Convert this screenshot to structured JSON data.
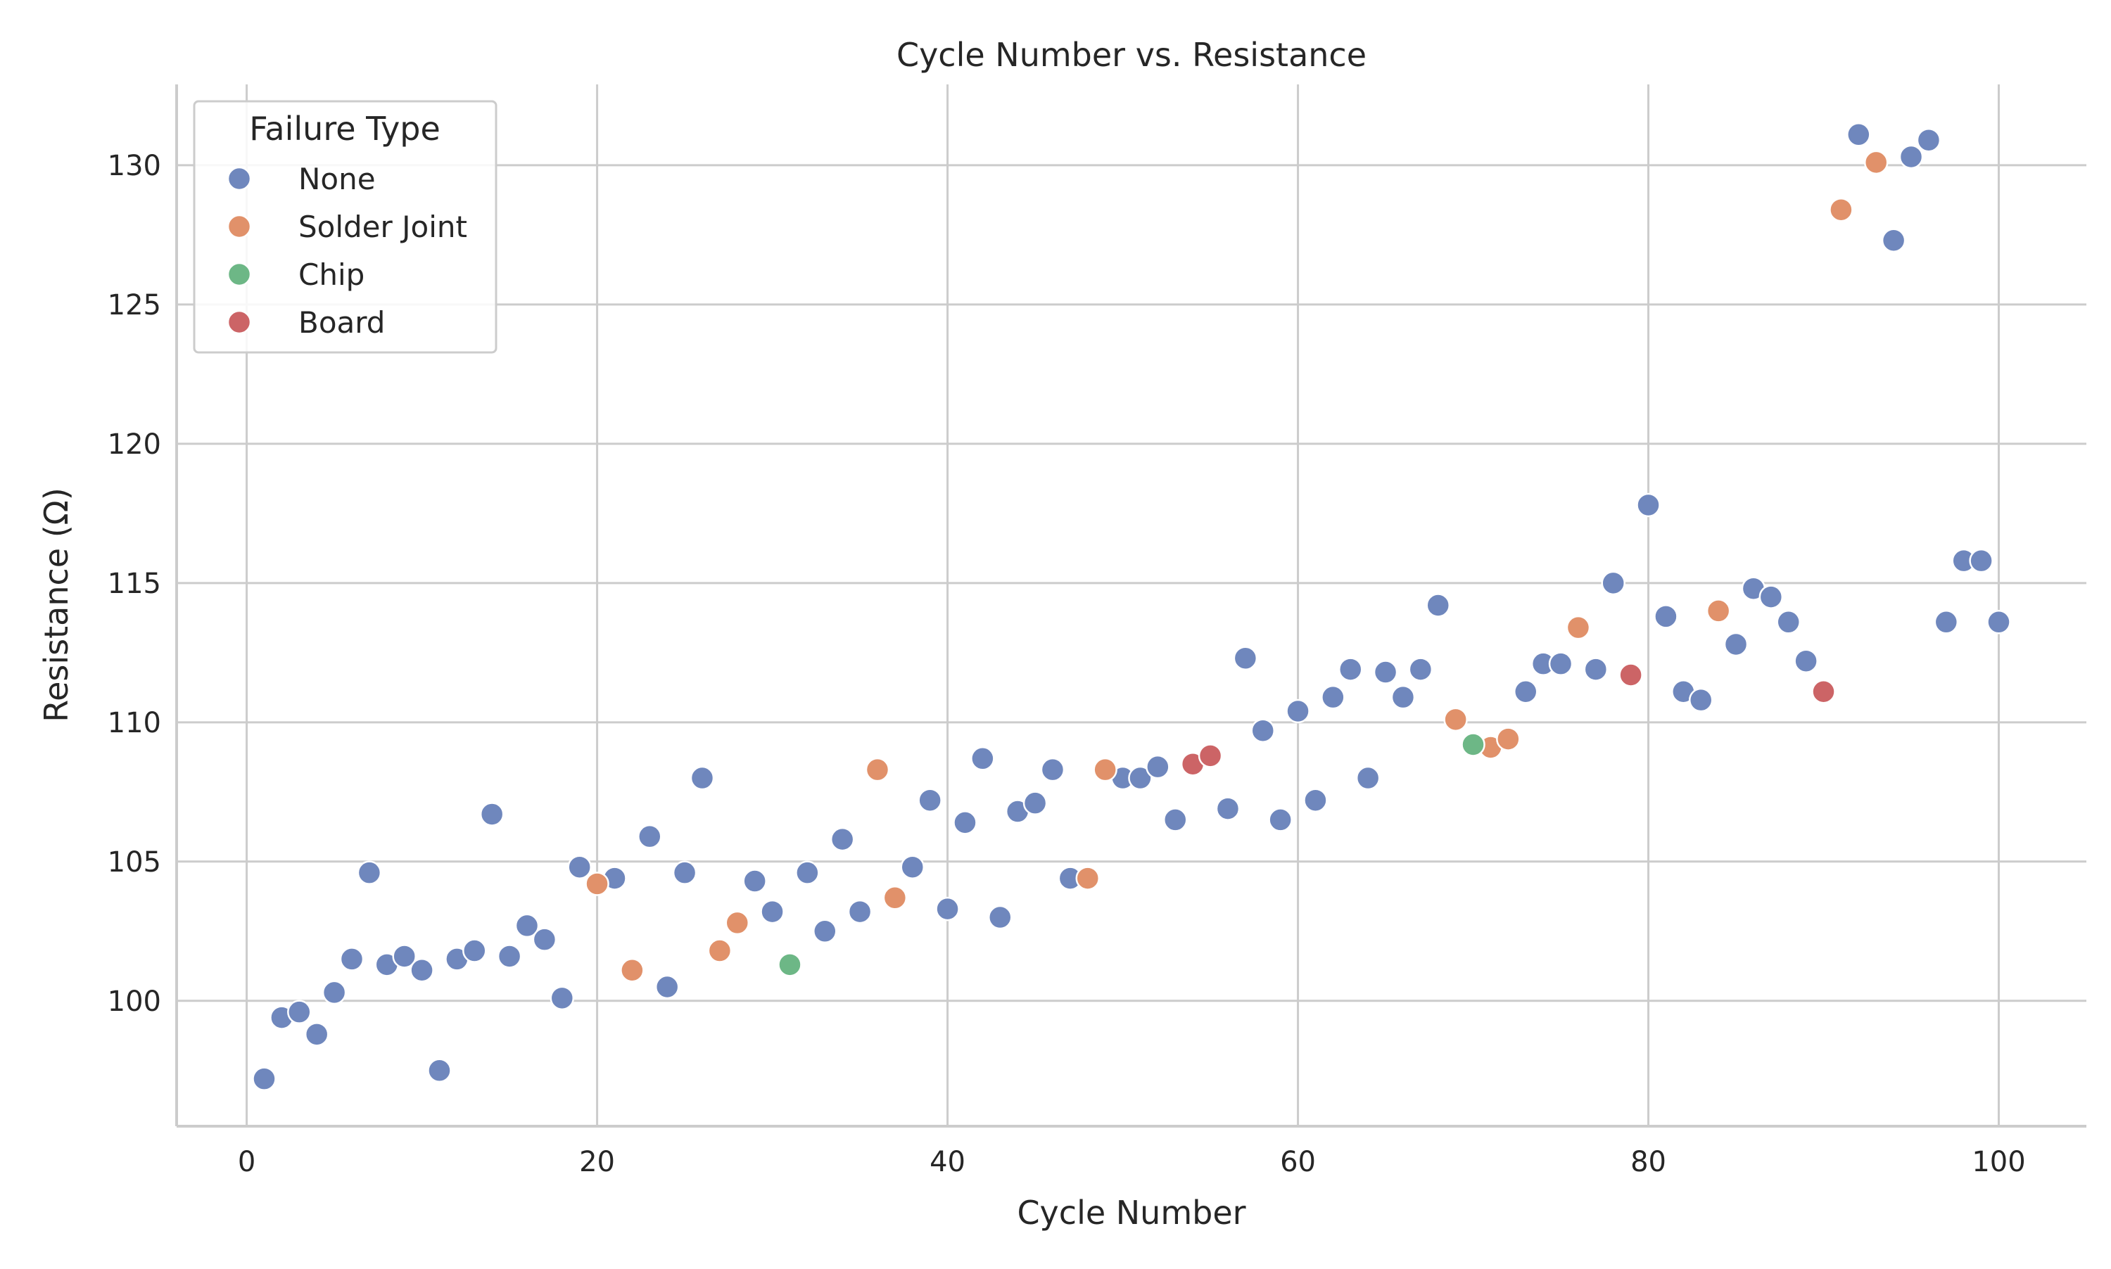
{
  "chart_data": {
    "type": "scatter",
    "title": "Cycle Number vs. Resistance",
    "xlabel": "Cycle Number",
    "ylabel": "Resistance (Ω)",
    "xlim": [
      -4,
      105
    ],
    "ylim": [
      95.5,
      132.9
    ],
    "xticks": [
      0,
      20,
      40,
      60,
      80,
      100
    ],
    "yticks": [
      100,
      105,
      110,
      115,
      120,
      125,
      130
    ],
    "xtick_labels": [
      "0",
      "20",
      "40",
      "60",
      "80",
      "100"
    ],
    "ytick_labels": [
      "100",
      "105",
      "110",
      "115",
      "120",
      "125",
      "130"
    ],
    "grid": true,
    "legend": {
      "title": "Failure Type",
      "placement": "top-left",
      "entries": [
        "None",
        "Solder Joint",
        "Chip",
        "Board"
      ]
    },
    "colors": {
      "None": "#6f87bd",
      "Solder Joint": "#e1916a",
      "Chip": "#6db786",
      "Board": "#cc6466"
    },
    "series": [
      {
        "name": "None",
        "points": [
          [
            1,
            97.2
          ],
          [
            2,
            99.4
          ],
          [
            3,
            99.6
          ],
          [
            4,
            98.8
          ],
          [
            5,
            100.3
          ],
          [
            6,
            101.5
          ],
          [
            7,
            104.6
          ],
          [
            8,
            101.3
          ],
          [
            9,
            101.6
          ],
          [
            10,
            101.1
          ],
          [
            11,
            97.5
          ],
          [
            12,
            101.5
          ],
          [
            13,
            101.8
          ],
          [
            14,
            106.7
          ],
          [
            15,
            101.6
          ],
          [
            16,
            102.7
          ],
          [
            17,
            102.2
          ],
          [
            18,
            100.1
          ],
          [
            19,
            104.8
          ],
          [
            21,
            104.4
          ],
          [
            23,
            105.9
          ],
          [
            24,
            100.5
          ],
          [
            25,
            104.6
          ],
          [
            26,
            108.0
          ],
          [
            29,
            104.3
          ],
          [
            30,
            103.2
          ],
          [
            32,
            104.6
          ],
          [
            33,
            102.5
          ],
          [
            34,
            105.8
          ],
          [
            35,
            103.2
          ],
          [
            38,
            104.8
          ],
          [
            39,
            107.2
          ],
          [
            40,
            103.3
          ],
          [
            41,
            106.4
          ],
          [
            42,
            108.7
          ],
          [
            43,
            103.0
          ],
          [
            44,
            106.8
          ],
          [
            45,
            107.1
          ],
          [
            46,
            108.3
          ],
          [
            47,
            104.4
          ],
          [
            50,
            108.0
          ],
          [
            51,
            108.0
          ],
          [
            52,
            108.4
          ],
          [
            53,
            106.5
          ],
          [
            56,
            106.9
          ],
          [
            57,
            112.3
          ],
          [
            58,
            109.7
          ],
          [
            59,
            106.5
          ],
          [
            60,
            110.4
          ],
          [
            61,
            107.2
          ],
          [
            62,
            110.9
          ],
          [
            63,
            111.9
          ],
          [
            64,
            108.0
          ],
          [
            65,
            111.8
          ],
          [
            66,
            110.9
          ],
          [
            67,
            111.9
          ],
          [
            68,
            114.2
          ],
          [
            73,
            111.1
          ],
          [
            74,
            112.1
          ],
          [
            75,
            112.1
          ],
          [
            77,
            111.9
          ],
          [
            78,
            115.0
          ],
          [
            80,
            117.8
          ],
          [
            81,
            113.8
          ],
          [
            82,
            111.1
          ],
          [
            83,
            110.8
          ],
          [
            85,
            112.8
          ],
          [
            86,
            114.8
          ],
          [
            87,
            114.5
          ],
          [
            88,
            113.6
          ],
          [
            89,
            112.2
          ],
          [
            92,
            131.1
          ],
          [
            94,
            127.3
          ],
          [
            95,
            130.3
          ],
          [
            96,
            130.9
          ],
          [
            97,
            113.6
          ],
          [
            98,
            115.8
          ],
          [
            99,
            115.8
          ],
          [
            100,
            113.6
          ]
        ]
      },
      {
        "name": "Solder Joint",
        "points": [
          [
            20,
            104.2
          ],
          [
            22,
            101.1
          ],
          [
            27,
            101.8
          ],
          [
            28,
            102.8
          ],
          [
            36,
            108.3
          ],
          [
            37,
            103.7
          ],
          [
            48,
            104.4
          ],
          [
            49,
            108.3
          ],
          [
            69,
            110.1
          ],
          [
            71,
            109.1
          ],
          [
            72,
            109.4
          ],
          [
            76,
            113.4
          ],
          [
            84,
            114.0
          ],
          [
            91,
            128.4
          ],
          [
            93,
            130.1
          ]
        ]
      },
      {
        "name": "Chip",
        "points": [
          [
            31,
            101.3
          ],
          [
            70,
            109.2
          ]
        ]
      },
      {
        "name": "Board",
        "points": [
          [
            54,
            108.5
          ],
          [
            55,
            108.8
          ],
          [
            79,
            111.7
          ],
          [
            90,
            111.1
          ]
        ]
      }
    ]
  }
}
